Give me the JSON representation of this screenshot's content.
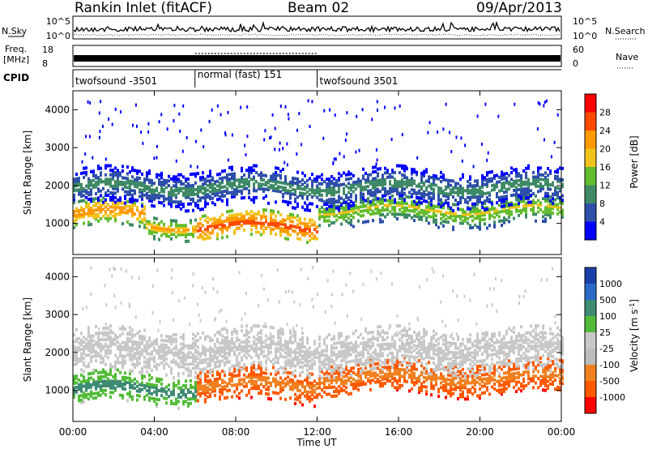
{
  "header": {
    "station": "Rankin Inlet (fitACF)",
    "beam": "Beam 02",
    "date": "09/Apr/2013"
  },
  "top_panels": {
    "nsky_label": "N.Sky",
    "nsky_ticks": [
      "10^5",
      "10^0"
    ],
    "nsearch_label": "N.Search",
    "nsearch_ticks": [
      "10^5",
      "10^0"
    ],
    "freq_label": "Freq.",
    "freq_unit": "[MHz]",
    "freq_ticks": [
      "18",
      "8"
    ],
    "nave_label": "Nave",
    "nave_ticks": [
      "60",
      "0"
    ],
    "cpid_label": "CPID",
    "cpid_segments": [
      {
        "name": "twofsound -3501",
        "start_h": 0,
        "end_h": 6
      },
      {
        "name": "normal (fast) 151",
        "start_h": 6,
        "end_h": 12
      },
      {
        "name": "twofsound 3501",
        "start_h": 12,
        "end_h": 24
      }
    ]
  },
  "x_axis": {
    "label": "Time UT",
    "ticks": [
      "00:00",
      "04:00",
      "08:00",
      "12:00",
      "16:00",
      "20:00",
      "00:00"
    ]
  },
  "chart_data": [
    {
      "type": "heatmap",
      "title": "",
      "xlabel": "Time UT",
      "ylabel": "Slant Range [km]",
      "xlim_hours": [
        0,
        24
      ],
      "ylim": [
        180,
        4500
      ],
      "yticks": [
        1000,
        2000,
        3000,
        4000
      ],
      "colorbar": {
        "label": "Power [dB]",
        "ticks": [
          "28",
          "24",
          "20",
          "16",
          "12",
          "8",
          "4"
        ],
        "colors": [
          "#ff0000",
          "#ff4a00",
          "#ff9a00",
          "#f2c21d",
          "#62bc2e",
          "#3f8a66",
          "#2e4faa",
          "#0000ff"
        ]
      },
      "bands_km": [
        {
          "t0": 0,
          "t1": 3.5,
          "center": 1200,
          "width": 350,
          "level": 22
        },
        {
          "t0": 3.5,
          "t1": 6,
          "center": 900,
          "width": 300,
          "level": 20
        },
        {
          "t0": 6,
          "t1": 12,
          "center": 900,
          "width": 350,
          "level": 26
        },
        {
          "t0": 12,
          "t1": 24,
          "center": 1300,
          "width": 400,
          "level": 16
        },
        {
          "t0": 0,
          "t1": 24,
          "center": 1900,
          "width": 500,
          "level": 10
        }
      ]
    },
    {
      "type": "heatmap",
      "title": "",
      "xlabel": "Time UT",
      "ylabel": "Slant Range [km]",
      "xlim_hours": [
        0,
        24
      ],
      "ylim": [
        180,
        4500
      ],
      "yticks": [
        1000,
        2000,
        3000,
        4000
      ],
      "colorbar": {
        "label": "Velocity [m s-1]",
        "ticks": [
          "1000",
          "500",
          "100",
          "25",
          "-25",
          "-100",
          "-500",
          "-1000"
        ],
        "colors": [
          "#1a3fa8",
          "#2a6bc8",
          "#3e8b74",
          "#52bb38",
          "#c8c8c8",
          "#bdbdbd",
          "#f08020",
          "#ff5a00",
          "#ff0000"
        ]
      },
      "bands_km": [
        {
          "t0": 0,
          "t1": 6,
          "center": 1000,
          "width": 400,
          "level": 100
        },
        {
          "t0": 6,
          "t1": 12,
          "center": 1100,
          "width": 450,
          "level": -300
        },
        {
          "t0": 12,
          "t1": 24,
          "center": 1300,
          "width": 450,
          "level": -200
        },
        {
          "t0": 0,
          "t1": 24,
          "center": 2000,
          "width": 600,
          "level": 0
        }
      ]
    }
  ]
}
